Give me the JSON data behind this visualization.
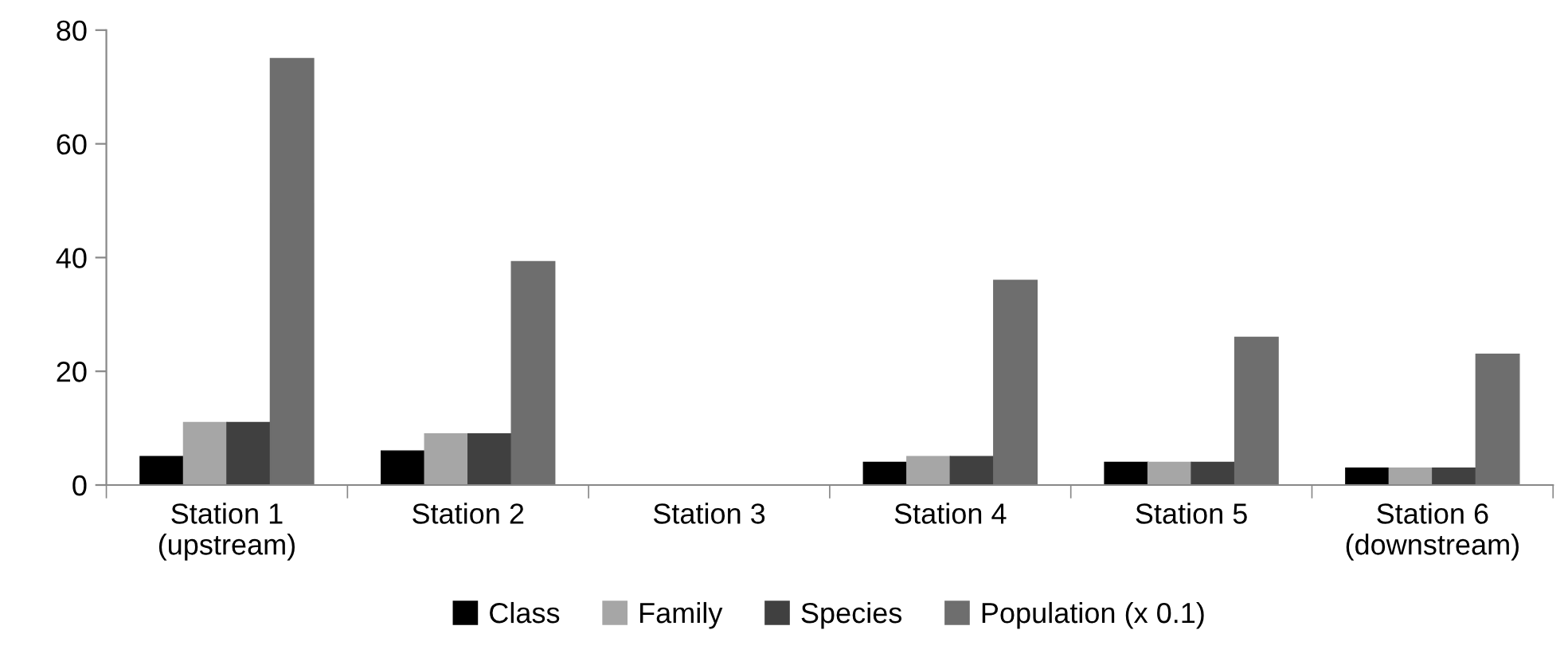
{
  "chart_data": {
    "type": "bar",
    "categories": [
      "Station 1\n(upstream)",
      "Station 2",
      "Station 3",
      "Station 4",
      "Station 5",
      "Station 6\n(downstream)"
    ],
    "series": [
      {
        "name": "Class",
        "color": "#000000",
        "values": [
          5,
          6,
          0,
          4,
          4,
          3
        ]
      },
      {
        "name": "Family",
        "color": "#a6a6a6",
        "values": [
          11,
          9,
          0,
          5,
          4,
          3
        ]
      },
      {
        "name": "Species",
        "color": "#404040",
        "values": [
          11,
          9,
          0,
          5,
          4,
          3
        ]
      },
      {
        "name": "Population (x 0.1)",
        "color": "#6e6e6e",
        "values": [
          75,
          39.3,
          0,
          36,
          26,
          23
        ]
      }
    ],
    "ylim": [
      0,
      80
    ],
    "yticks": [
      0,
      20,
      40,
      60,
      80
    ],
    "grid": false,
    "legend": "bottom"
  }
}
